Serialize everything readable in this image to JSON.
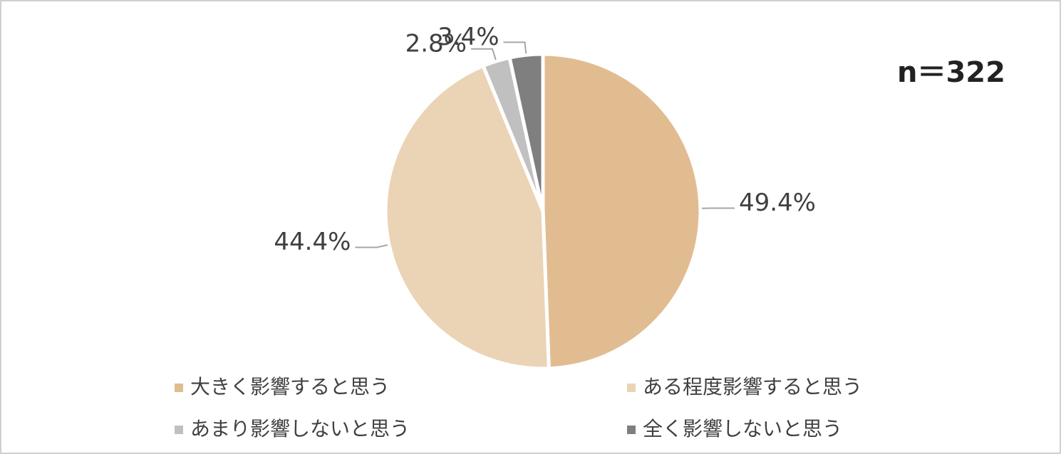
{
  "chart_data": {
    "type": "pie",
    "annotation": "n＝322",
    "categories": [
      "大きく影響すると思う",
      "ある程度影響すると思う",
      "あまり影響しないと思う",
      "全く影響しないと思う"
    ],
    "values": [
      49.4,
      44.4,
      2.8,
      3.4
    ],
    "value_labels": [
      "49.4%",
      "44.4%",
      "2.8%",
      "3.4%"
    ],
    "colors": [
      "#e2bc91",
      "#ebd3b5",
      "#c0c0c0",
      "#7f7f7f"
    ],
    "start": "top",
    "direction": "clockwise"
  }
}
